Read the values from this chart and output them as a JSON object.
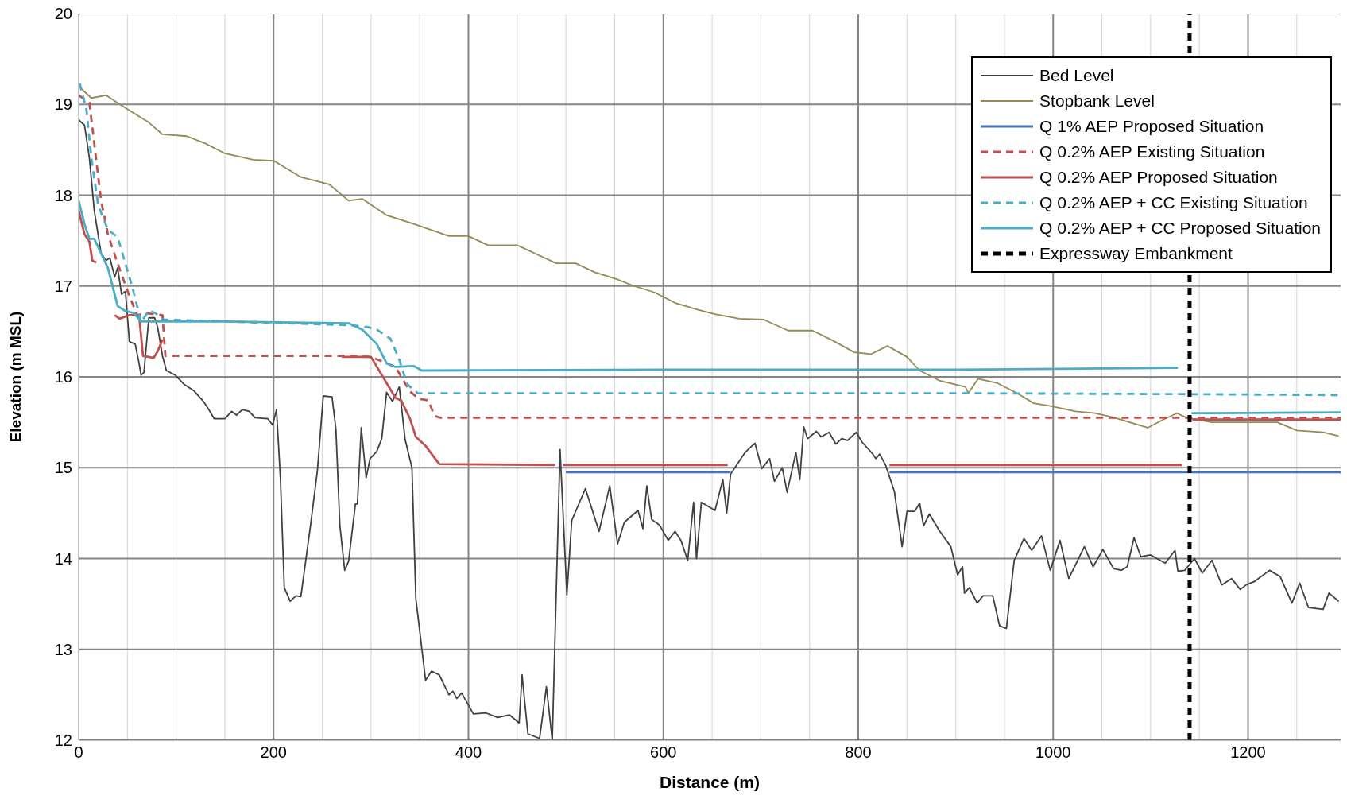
{
  "chart_data": {
    "type": "line",
    "xlabel": "Distance  (m)",
    "ylabel": "Elevation (m MSL)",
    "xlim": [
      0,
      1295
    ],
    "ylim": [
      12,
      20
    ],
    "xticks": [
      0,
      {
        "value": 50,
        "label": null
      },
      {
        "value": 100,
        "label": null
      },
      {
        "value": 150,
        "label": null
      },
      200,
      {
        "value": 250,
        "label": null
      },
      {
        "value": 300,
        "label": null
      },
      {
        "value": 350,
        "label": null
      },
      400,
      {
        "value": 450,
        "label": null
      },
      {
        "value": 500,
        "label": null
      },
      {
        "value": 550,
        "label": null
      },
      600,
      {
        "value": 650,
        "label": null
      },
      {
        "value": 700,
        "label": null
      },
      {
        "value": 750,
        "label": null
      },
      800,
      {
        "value": 850,
        "label": null
      },
      {
        "value": 900,
        "label": null
      },
      {
        "value": 950,
        "label": null
      },
      1000,
      {
        "value": 1050,
        "label": null
      },
      {
        "value": 1100,
        "label": null
      },
      {
        "value": 1150,
        "label": null
      },
      1200,
      {
        "value": 1250,
        "label": null
      }
    ],
    "yticks": [
      12,
      13,
      14,
      15,
      16,
      17,
      18,
      19,
      20
    ],
    "grid": true,
    "legend": "top right",
    "marker": "none",
    "series": [
      {
        "name": "Bed Level",
        "color": "#404040",
        "line_style": "solid",
        "x": [
          0,
          6,
          11,
          16,
          23,
          28,
          32,
          37,
          40,
          44,
          48,
          52,
          58,
          62,
          64,
          67,
          72,
          78,
          81,
          86,
          90,
          99,
          108,
          118,
          128,
          133,
          139,
          150,
          157,
          162,
          168,
          175,
          181,
          194,
          199,
          203,
          207,
          211,
          217,
          223,
          228,
          238,
          245,
          251,
          260,
          264,
          268,
          273,
          277,
          284,
          286,
          290,
          295,
          299,
          306,
          311,
          316,
          322,
          329,
          335,
          342,
          346,
          356,
          362,
          370,
          380,
          384,
          388,
          393,
          405,
          418,
          430,
          442,
          452,
          455,
          461,
          473,
          480,
          486,
          494,
          501,
          506,
          520,
          534,
          545,
          553,
          560,
          574,
          579,
          583,
          588,
          596,
          605,
          612,
          618,
          625,
          631,
          634,
          639,
          653,
          661,
          665,
          669,
          684,
          694,
          701,
          709,
          714,
          722,
          727,
          736,
          740,
          744,
          748,
          757,
          762,
          770,
          777,
          783,
          789,
          798,
          804,
          815,
          818,
          822,
          828,
          837,
          845,
          850,
          858,
          863,
          867,
          873,
          883,
          895,
          902,
          907,
          909,
          914,
          922,
          928,
          938,
          945,
          952,
          960,
          970,
          978,
          988,
          997,
          1007,
          1016,
          1032,
          1041,
          1051,
          1062,
          1070,
          1076,
          1083,
          1090,
          1100,
          1115,
          1125,
          1128,
          1135,
          1145,
          1153,
          1163,
          1173,
          1183,
          1192,
          1198,
          1207,
          1222,
          1233,
          1245,
          1253,
          1262,
          1277,
          1283,
          1293
        ],
        "values": [
          18.83,
          18.77,
          18.41,
          17.83,
          17.36,
          17.28,
          17.31,
          17.1,
          17.2,
          16.91,
          16.94,
          16.39,
          16.36,
          16.15,
          16.02,
          16.05,
          16.65,
          16.65,
          16.55,
          16.23,
          16.07,
          16.02,
          15.92,
          15.85,
          15.73,
          15.65,
          15.54,
          15.54,
          15.62,
          15.58,
          15.64,
          15.62,
          15.55,
          15.54,
          15.47,
          15.64,
          14.89,
          13.68,
          13.53,
          13.59,
          13.58,
          14.37,
          14.97,
          15.79,
          15.78,
          15.42,
          14.37,
          13.87,
          13.97,
          14.6,
          14.6,
          15.44,
          14.89,
          15.1,
          15.18,
          15.32,
          15.83,
          15.73,
          15.89,
          15.31,
          15.0,
          13.56,
          12.66,
          12.76,
          12.72,
          12.5,
          12.54,
          12.46,
          12.52,
          12.29,
          12.3,
          12.25,
          12.28,
          12.19,
          12.72,
          12.07,
          12.02,
          12.59,
          12.0,
          15.2,
          13.6,
          14.42,
          14.77,
          14.3,
          14.8,
          14.16,
          14.4,
          14.53,
          14.33,
          14.8,
          14.43,
          14.37,
          14.2,
          14.3,
          14.2,
          13.98,
          14.62,
          14.0,
          14.62,
          14.53,
          14.87,
          14.5,
          14.93,
          15.17,
          15.27,
          14.99,
          15.1,
          14.85,
          15.0,
          14.73,
          15.17,
          14.87,
          15.45,
          15.32,
          15.4,
          15.34,
          15.39,
          15.26,
          15.32,
          15.3,
          15.39,
          15.28,
          15.15,
          15.1,
          15.15,
          15.03,
          14.74,
          14.13,
          14.52,
          14.52,
          14.61,
          14.36,
          14.49,
          14.31,
          14.13,
          13.82,
          13.91,
          13.62,
          13.68,
          13.51,
          13.59,
          13.59,
          13.26,
          13.23,
          13.98,
          14.22,
          14.09,
          14.25,
          13.87,
          14.2,
          13.78,
          14.13,
          13.91,
          14.1,
          13.89,
          13.87,
          13.91,
          14.23,
          14.02,
          14.04,
          13.95,
          14.09,
          13.86,
          13.87,
          14.0,
          13.84,
          13.98,
          13.71,
          13.78,
          13.66,
          13.71,
          13.75,
          13.87,
          13.8,
          13.51,
          13.73,
          13.46,
          13.44,
          13.62,
          13.53
        ]
      },
      {
        "name": "Stopbank Level",
        "color": "#948a54",
        "line_style": "solid",
        "x": [
          0,
          13,
          28,
          48,
          72,
          86,
          111,
          130,
          150,
          179,
          200,
          228,
          257,
          277,
          291,
          316,
          345,
          380,
          400,
          420,
          450,
          470,
          490,
          510,
          530,
          551,
          570,
          591,
          613,
          635,
          653,
          678,
          703,
          728,
          753,
          772,
          796,
          813,
          830,
          850,
          863,
          883,
          910,
          913,
          923,
          943,
          963,
          980,
          997,
          1023,
          1043,
          1063,
          1097,
          1113,
          1127,
          1137,
          1163,
          1203,
          1230,
          1250,
          1277,
          1293
        ],
        "values": [
          19.2,
          19.07,
          19.1,
          18.96,
          18.8,
          18.67,
          18.65,
          18.57,
          18.46,
          18.39,
          18.38,
          18.2,
          18.12,
          17.94,
          17.96,
          17.78,
          17.68,
          17.55,
          17.55,
          17.45,
          17.45,
          17.35,
          17.25,
          17.25,
          17.15,
          17.08,
          17.0,
          16.93,
          16.81,
          16.74,
          16.69,
          16.64,
          16.63,
          16.51,
          16.51,
          16.41,
          16.27,
          16.25,
          16.34,
          16.22,
          16.07,
          15.96,
          15.89,
          15.82,
          15.98,
          15.93,
          15.82,
          15.71,
          15.68,
          15.62,
          15.6,
          15.55,
          15.44,
          15.53,
          15.6,
          15.55,
          15.5,
          15.5,
          15.5,
          15.41,
          15.39,
          15.35
        ]
      },
      {
        "name": "Q 1% AEP Proposed Situation",
        "color": "#4472c4",
        "line_style": "solid",
        "x": [
          500,
          669,
          750,
          832,
          1295
        ],
        "values": [
          14.95,
          14.95,
          null,
          14.95,
          14.95
        ]
      },
      {
        "name": "Q 0.2% AEP Existing Situation",
        "color": "#c0504d",
        "line_style": "dashed",
        "x": [
          0,
          11,
          16,
          23,
          30,
          38,
          45,
          52,
          60,
          70,
          86,
          89,
          150,
          277,
          300,
          325,
          340,
          349,
          359,
          365,
          371,
          1295
        ],
        "values": [
          19.1,
          19.02,
          18.57,
          17.94,
          17.57,
          17.31,
          17.1,
          16.89,
          16.68,
          16.7,
          16.68,
          16.23,
          16.23,
          16.23,
          16.22,
          16.11,
          15.84,
          15.76,
          15.74,
          15.57,
          15.55,
          15.55
        ]
      },
      {
        "name": "Q 0.2% AEP Proposed Situation",
        "color": "#c0504d",
        "line_style": "solid",
        "x": [
          0,
          6,
          11,
          14,
          18,
          28,
          37,
          42,
          52,
          62,
          66,
          77,
          81,
          86,
          150,
          270,
          300,
          325,
          331,
          340,
          346,
          356,
          370,
          489,
          493,
          497,
          666,
          750,
          832,
          1132,
          1138,
          1143,
          1295
        ],
        "values": [
          17.83,
          17.57,
          17.49,
          17.28,
          17.26,
          null,
          16.68,
          16.64,
          16.68,
          16.68,
          16.23,
          16.21,
          16.28,
          16.41,
          null,
          16.22,
          16.22,
          15.77,
          15.74,
          15.54,
          15.34,
          15.24,
          15.04,
          15.03,
          null,
          15.03,
          15.03,
          null,
          15.03,
          15.03,
          null,
          15.53,
          15.53
        ]
      },
      {
        "name": "Q 0.2% AEP + CC Existing Situation",
        "color": "#4bacc6",
        "line_style": "dashed",
        "x": [
          1,
          8,
          13,
          20,
          30,
          40,
          47,
          55,
          60,
          64,
          72,
          79,
          86,
          150,
          277,
          296,
          306,
          320,
          329,
          337,
          348,
          900,
          1130,
          1295
        ],
        "values": [
          19.23,
          18.94,
          18.41,
          17.89,
          17.62,
          17.54,
          17.28,
          16.99,
          16.78,
          16.6,
          16.73,
          16.7,
          16.63,
          16.61,
          16.57,
          16.55,
          16.52,
          16.42,
          16.19,
          15.92,
          15.82,
          15.82,
          15.81,
          15.8
        ]
      },
      {
        "name": "Q 0.2% AEP + CC Proposed Situation",
        "color": "#4bacc6",
        "line_style": "solid",
        "x": [
          0,
          6,
          11,
          16,
          23,
          30,
          35,
          40,
          47,
          57,
          64,
          150,
          277,
          291,
          306,
          316,
          325,
          344,
          352,
          600,
          900,
          1128,
          1135,
          1142,
          1295
        ],
        "values": [
          17.94,
          17.68,
          17.52,
          17.52,
          17.36,
          17.2,
          16.99,
          16.78,
          16.73,
          16.7,
          16.61,
          16.61,
          16.59,
          16.52,
          16.36,
          16.15,
          16.11,
          16.12,
          16.07,
          16.08,
          16.08,
          16.1,
          null,
          15.6,
          15.61
        ]
      },
      {
        "name": "Expressway Embankment",
        "color": "#000000",
        "line_style": "dashed",
        "x": [
          1140,
          1140
        ],
        "values": [
          12,
          20
        ]
      }
    ]
  }
}
